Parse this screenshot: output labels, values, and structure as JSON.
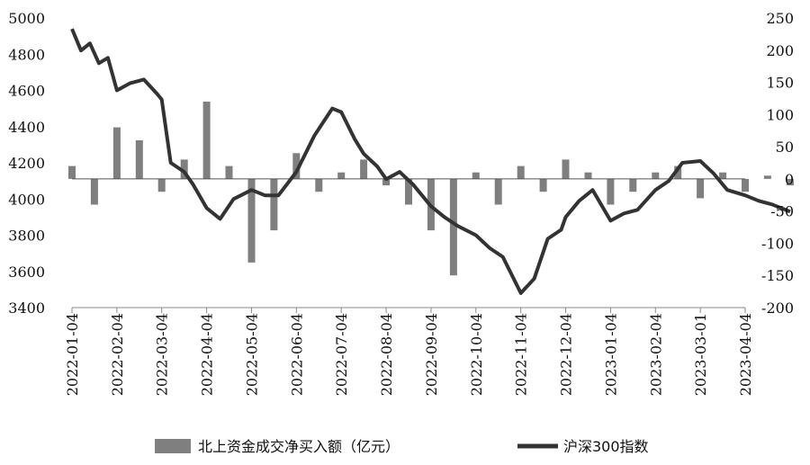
{
  "chart_data": {
    "type": "bar+line",
    "title": "",
    "x_tick_labels": [
      "2022-01-04",
      "2022-02-04",
      "2022-03-04",
      "2022-04-04",
      "2022-05-04",
      "2022-06-04",
      "2022-07-04",
      "2022-08-04",
      "2022-09-04",
      "2022-10-04",
      "2022-11-04",
      "2022-12-04",
      "2023-01-04",
      "2023-02-04",
      "2023-03-01",
      "2023-04-04"
    ],
    "y_left": {
      "ticks": [
        5000,
        4800,
        4600,
        4400,
        4200,
        4000,
        3800,
        3600,
        3400
      ],
      "ylim": [
        3400,
        5000
      ]
    },
    "y_right": {
      "ticks": [
        250,
        200,
        150,
        100,
        50,
        0,
        -50,
        -100,
        -150,
        -200
      ],
      "ylim": [
        -200,
        250
      ]
    },
    "legend_position": "bottom",
    "series": [
      {
        "name": "北上资金成交净买入额（亿元）",
        "type": "bar",
        "axis": "right",
        "color": "#7f7f7f",
        "x": [
          0,
          0.5,
          1,
          1.5,
          2,
          2.5,
          3,
          3.5,
          4,
          4.5,
          5,
          5.5,
          6,
          6.5,
          7,
          7.5,
          8,
          8.5,
          9,
          9.5,
          10,
          10.5,
          11,
          11.5,
          12,
          12.5,
          13,
          13.5,
          14,
          14.5,
          15,
          15.5,
          16
        ],
        "values": [
          20,
          -40,
          80,
          60,
          -20,
          30,
          120,
          20,
          -130,
          -80,
          40,
          -20,
          10,
          30,
          -10,
          -40,
          -80,
          -150,
          10,
          -40,
          20,
          -20,
          30,
          10,
          -40,
          -20,
          10,
          20,
          -30,
          10,
          -20,
          5,
          -10
        ]
      },
      {
        "name": "沪深300指数",
        "type": "line",
        "axis": "left",
        "color": "#333333",
        "x": [
          0,
          0.2,
          0.4,
          0.6,
          0.8,
          1.0,
          1.3,
          1.6,
          1.9,
          2.0,
          2.2,
          2.5,
          2.7,
          3.0,
          3.3,
          3.6,
          4.0,
          4.3,
          4.6,
          5.0,
          5.4,
          5.8,
          6.0,
          6.3,
          6.5,
          6.8,
          7.0,
          7.3,
          7.6,
          8.0,
          8.3,
          8.6,
          9.0,
          9.3,
          9.6,
          10.0,
          10.3,
          10.6,
          10.9,
          11.0,
          11.3,
          11.6,
          12.0,
          12.3,
          12.6,
          13.0,
          13.3,
          13.6,
          14.0,
          14.3,
          14.6,
          15.0,
          15.3,
          15.6,
          16.0
        ],
        "values": [
          4940,
          4820,
          4860,
          4750,
          4780,
          4600,
          4640,
          4660,
          4580,
          4550,
          4200,
          4150,
          4080,
          3950,
          3890,
          4000,
          4050,
          4020,
          4020,
          4150,
          4350,
          4500,
          4480,
          4330,
          4250,
          4180,
          4110,
          4150,
          4080,
          3960,
          3900,
          3850,
          3800,
          3730,
          3680,
          3480,
          3560,
          3780,
          3830,
          3900,
          3990,
          4050,
          3880,
          3920,
          3940,
          4050,
          4100,
          4200,
          4210,
          4140,
          4050,
          4020,
          3990,
          3970,
          3930
        ]
      }
    ]
  },
  "legend": {
    "bar_label": "北上资金成交净买入额（亿元）",
    "line_label": "沪深300指数"
  }
}
